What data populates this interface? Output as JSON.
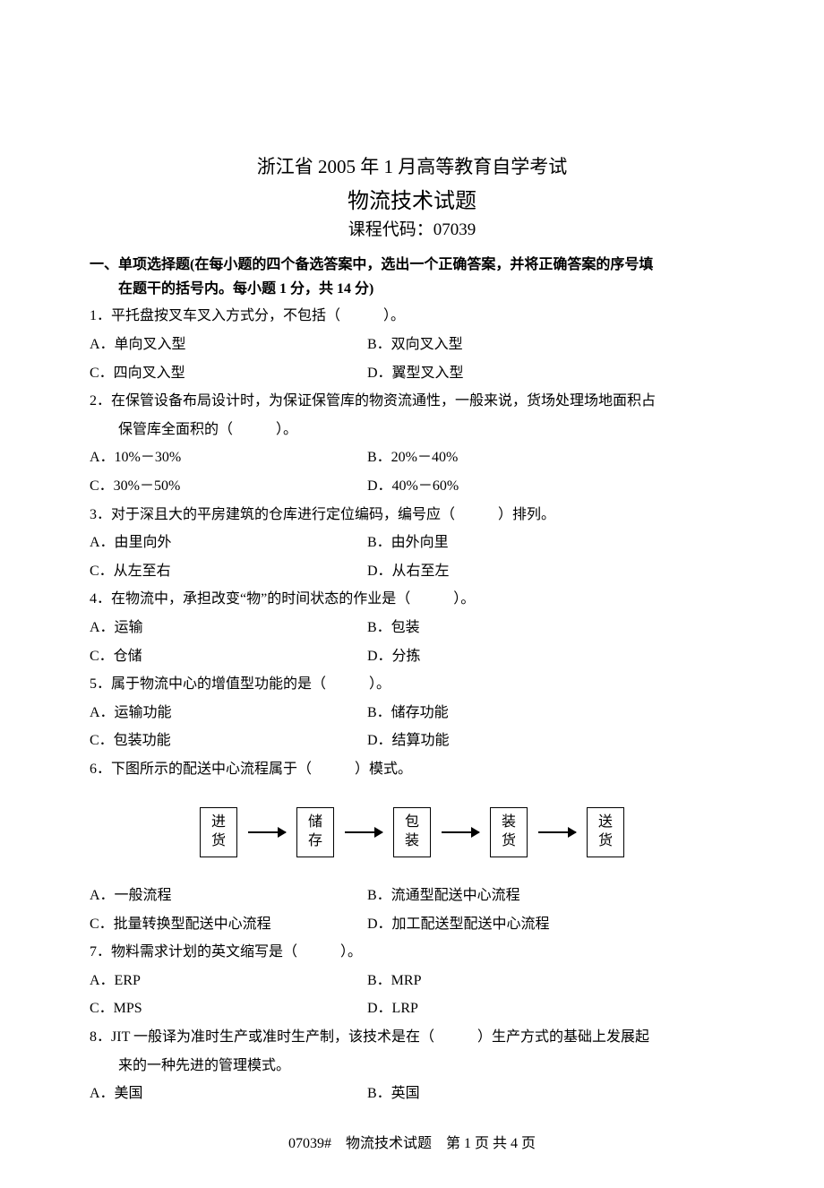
{
  "header": {
    "line1": "浙江省 2005 年 1 月高等教育自学考试",
    "line2": "物流技术试题",
    "line3": "课程代码：07039"
  },
  "section": {
    "title_line1": "一、单项选择题(在每小题的四个备选答案中，选出一个正确答案，并将正确答案的序号填",
    "title_line2": "在题干的括号内。每小题 1 分，共 14 分)"
  },
  "questions": [
    {
      "num": "1．",
      "text": "平托盘按叉车叉入方式分，不包括（　　　）。",
      "opts": {
        "A": "A．单向叉入型",
        "B": "B．双向叉入型",
        "C": "C．四向叉入型",
        "D": "D．翼型叉入型"
      }
    },
    {
      "num": "2．",
      "text": "在保管设备布局设计时，为保证保管库的物资流通性，一般来说，货场处理场地面积占",
      "text_cont": "保管库全面积的（　　　）。",
      "opts": {
        "A": "A．10%－30%",
        "B": "B．20%－40%",
        "C": "C．30%－50%",
        "D": "D．40%－60%"
      }
    },
    {
      "num": "3．",
      "text": "对于深且大的平房建筑的仓库进行定位编码，编号应（　　　）排列。",
      "opts": {
        "A": "A．由里向外",
        "B": "B．由外向里",
        "C": "C．从左至右",
        "D": "D．从右至左"
      }
    },
    {
      "num": "4．",
      "text": "在物流中，承担改变“物”的时间状态的作业是（　　　）。",
      "opts": {
        "A": "A．运输",
        "B": "B．包装",
        "C": "C．仓储",
        "D": "D．分拣"
      }
    },
    {
      "num": "5．",
      "text": "属于物流中心的增值型功能的是（　　　）。",
      "opts": {
        "A": "A．运输功能",
        "B": "B．储存功能",
        "C": "C．包装功能",
        "D": "D．结算功能"
      }
    },
    {
      "num": "6．",
      "text": "下图所示的配送中心流程属于（　　　）模式。",
      "flowchart": [
        "进货",
        "储存",
        "包装",
        "装货",
        "送货"
      ],
      "opts": {
        "A": "A．一般流程",
        "B": "B．流通型配送中心流程",
        "C": "C．批量转换型配送中心流程",
        "D": "D．加工配送型配送中心流程"
      }
    },
    {
      "num": "7．",
      "text": "物料需求计划的英文缩写是（　　　）。",
      "opts": {
        "A": "A．ERP",
        "B": "B．MRP",
        "C": "C．MPS",
        "D": "D．LRP"
      }
    },
    {
      "num": "8．",
      "text": "JIT 一般译为准时生产或准时生产制，该技术是在（　　　）生产方式的基础上发展起",
      "text_cont": "来的一种先进的管理模式。",
      "opts": {
        "A": "A．美国",
        "B": "B．英国"
      }
    }
  ],
  "footer": "07039#　物流技术试题　第 1 页 共 4 页"
}
